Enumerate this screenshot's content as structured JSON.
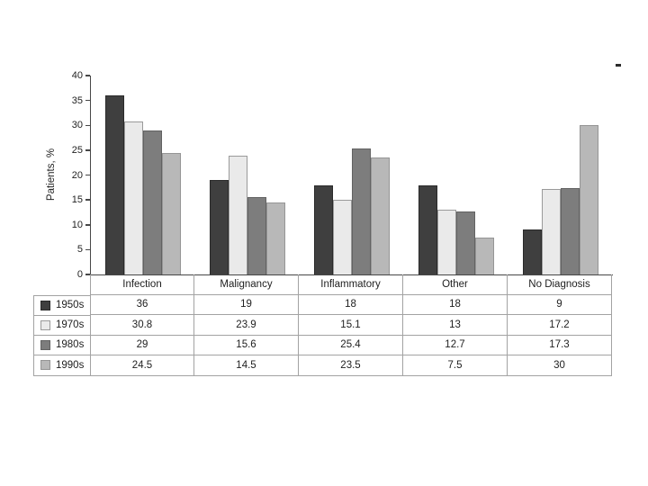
{
  "chart_data": {
    "type": "bar",
    "title": "",
    "ylabel": "Patients, %",
    "xlabel": "",
    "ylim": [
      0,
      40
    ],
    "yticks": [
      0,
      5,
      10,
      15,
      20,
      25,
      30,
      35,
      40
    ],
    "grid": false,
    "legend_position": "table-left",
    "categories": [
      "Infection",
      "Malignancy",
      "Inflammatory",
      "Other",
      "No Diagnosis"
    ],
    "series": [
      {
        "name": "1950s",
        "color": "#3f3f3f",
        "border_color": "#2a2a2a",
        "values": [
          36,
          19,
          18,
          18,
          9
        ]
      },
      {
        "name": "1970s",
        "color": "#eaeaea",
        "border_color": "#9a9a9a",
        "values": [
          30.8,
          23.9,
          15.1,
          13,
          17.2
        ]
      },
      {
        "name": "1980s",
        "color": "#7d7d7d",
        "border_color": "#626262",
        "values": [
          29,
          15.6,
          25.4,
          12.7,
          17.3
        ]
      },
      {
        "name": "1990s",
        "color": "#b8b8b8",
        "border_color": "#959595",
        "values": [
          24.5,
          14.5,
          23.5,
          7.5,
          30
        ]
      }
    ]
  },
  "artifact": {
    "stray_dash": "-"
  },
  "axis_color": "#474747",
  "table_border_color": "#a3a3a3"
}
